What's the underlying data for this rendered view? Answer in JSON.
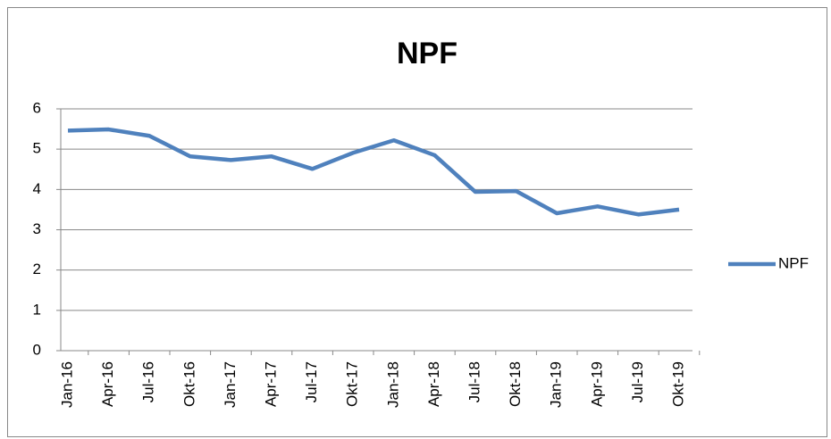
{
  "chart_data": {
    "type": "line",
    "title": "NPF",
    "categories": [
      "Jan-16",
      "Apr-16",
      "Jul-16",
      "Okt-16",
      "Jan-17",
      "Apr-17",
      "Jul-17",
      "Okt-17",
      "Jan-18",
      "Apr-18",
      "Jul-18",
      "Okt-18",
      "Jan-19",
      "Apr-19",
      "Jul-19",
      "Okt-19"
    ],
    "series": [
      {
        "name": "NPF",
        "color": "#4f81bd",
        "values": [
          5.46,
          5.49,
          5.33,
          4.82,
          4.73,
          4.82,
          4.51,
          4.91,
          5.22,
          4.85,
          3.94,
          3.96,
          3.41,
          3.58,
          3.38,
          3.5
        ]
      }
    ],
    "ylim": [
      0,
      6
    ],
    "yticks": [
      0,
      1,
      2,
      3,
      4,
      5,
      6
    ],
    "grid": true,
    "legend": "right"
  }
}
